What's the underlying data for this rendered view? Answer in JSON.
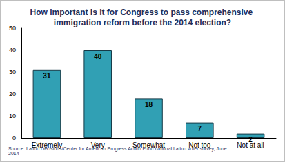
{
  "chart_data": {
    "type": "bar",
    "title": "How important is it for Congress to pass comprehensive immigration reform before the 2014 election?",
    "categories": [
      "Extremely",
      "Very",
      "Somewhat",
      "Not too",
      "Not at all"
    ],
    "values": [
      31,
      40,
      18,
      7,
      2
    ],
    "color": "#31a0b4",
    "ylim": [
      0,
      50
    ],
    "yticks": [
      0,
      10,
      20,
      30,
      40,
      50
    ],
    "grid": false,
    "data_labels": true,
    "annotations": [
      "Source: Latino Decisions/Center for American Progress Action Fund national Latino voter survey, June 2014"
    ]
  }
}
